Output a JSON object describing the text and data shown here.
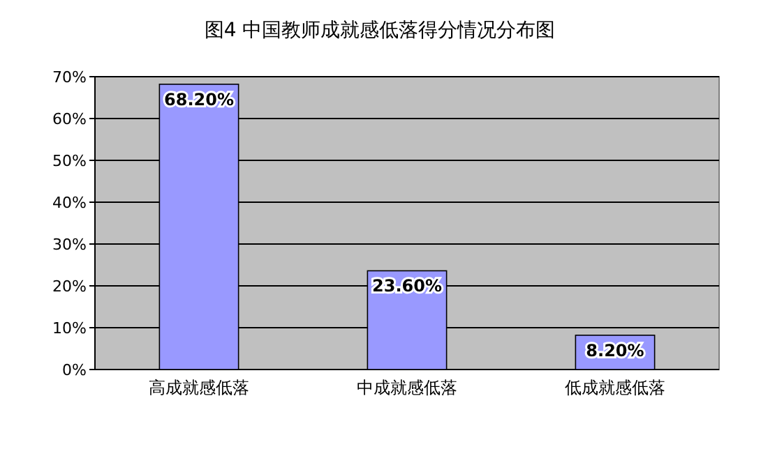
{
  "chart_data": {
    "type": "bar",
    "title": "图4 中国教师成就感低落得分情况分布图",
    "categories": [
      "高成就感低落",
      "中成就感低落",
      "低成就感低落"
    ],
    "values": [
      68.2,
      23.6,
      8.2
    ],
    "value_labels": [
      "68.20%",
      "23.60%",
      "8.20%"
    ],
    "color": "#9999ff",
    "ylim": [
      0,
      70
    ],
    "yticks": [
      {
        "value": 0,
        "label": "0%"
      },
      {
        "value": 10,
        "label": "10%"
      },
      {
        "value": 20,
        "label": "20%"
      },
      {
        "value": 30,
        "label": "30%"
      },
      {
        "value": 40,
        "label": "40%"
      },
      {
        "value": 50,
        "label": "50%"
      },
      {
        "value": 60,
        "label": "60%"
      },
      {
        "value": 70,
        "label": "70%"
      }
    ],
    "grid": "y"
  }
}
